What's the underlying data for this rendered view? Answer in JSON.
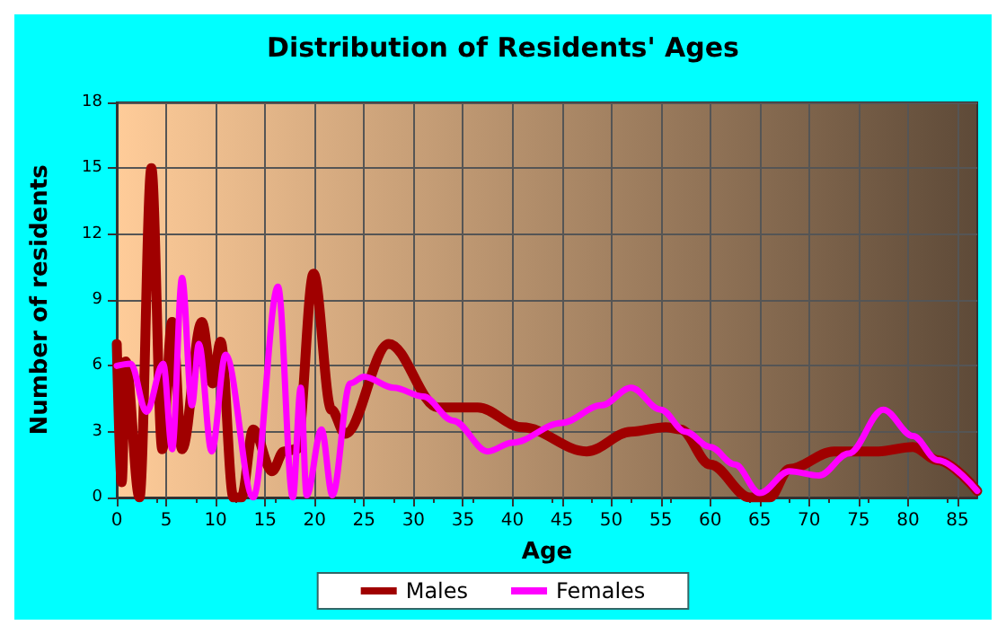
{
  "chart_data": {
    "type": "line",
    "title": "Distribution of Residents' Ages",
    "xlabel": "Age",
    "ylabel": "Number of residents",
    "xlim": [
      0,
      87
    ],
    "xticks": [
      0,
      5,
      10,
      15,
      20,
      25,
      30,
      35,
      40,
      45,
      50,
      55,
      60,
      65,
      70,
      75,
      80,
      85
    ],
    "ylim": [
      0,
      18
    ],
    "yticks": [
      0,
      3,
      6,
      9,
      12,
      15,
      18
    ],
    "grid": true,
    "legend": "bottom",
    "marker": "none",
    "line_style": "solid",
    "series": [
      {
        "name": "Males",
        "color": "#a00000",
        "x": [
          0,
          0.5,
          0.9,
          2.3,
          3.5,
          4.6,
          5.6,
          6.6,
          8.6,
          9.7,
          10.5,
          11.8,
          12.6,
          13.8,
          15.7,
          16.9,
          18.2,
          19.9,
          21.7,
          23.1,
          27.5,
          32.5,
          36.5,
          41,
          47.5,
          52,
          55.5,
          57,
          60,
          64,
          66,
          68,
          72.5,
          77,
          80.5,
          83,
          87
        ],
        "values": [
          7,
          0.7,
          6.2,
          0,
          15,
          2.2,
          8,
          2.2,
          8,
          5.2,
          7.1,
          0,
          0,
          3.1,
          1.2,
          2.1,
          2.2,
          10.2,
          4,
          2.9,
          7,
          4.1,
          4.1,
          3.2,
          2.1,
          3,
          3.2,
          3.1,
          1.5,
          0,
          0,
          1.3,
          2.1,
          2.1,
          2.3,
          1.7,
          0.3
        ]
      },
      {
        "name": "Females",
        "color": "#ff00ff",
        "x": [
          0,
          1.4,
          3,
          4.7,
          5.6,
          6.6,
          7.6,
          8.3,
          9.6,
          11,
          13.8,
          16.3,
          17.8,
          18.6,
          19.2,
          20.7,
          21.8,
          23.6,
          25,
          28,
          31,
          34,
          37.5,
          40,
          45,
          49,
          52,
          55,
          57.5,
          60,
          62.5,
          65,
          68,
          71,
          74,
          77.5,
          80.5,
          83,
          87
        ],
        "values": [
          6,
          6.1,
          3.9,
          6.1,
          2.2,
          10,
          4.2,
          7,
          2.1,
          6.5,
          0,
          9.6,
          0,
          5,
          0.1,
          3.1,
          0.1,
          5.2,
          5.5,
          5,
          4.6,
          3.5,
          2.1,
          2.5,
          3.4,
          4.2,
          5,
          4,
          3,
          2.3,
          1.5,
          0.2,
          1.2,
          1,
          2,
          4,
          2.8,
          1.7,
          0.3
        ]
      }
    ]
  }
}
